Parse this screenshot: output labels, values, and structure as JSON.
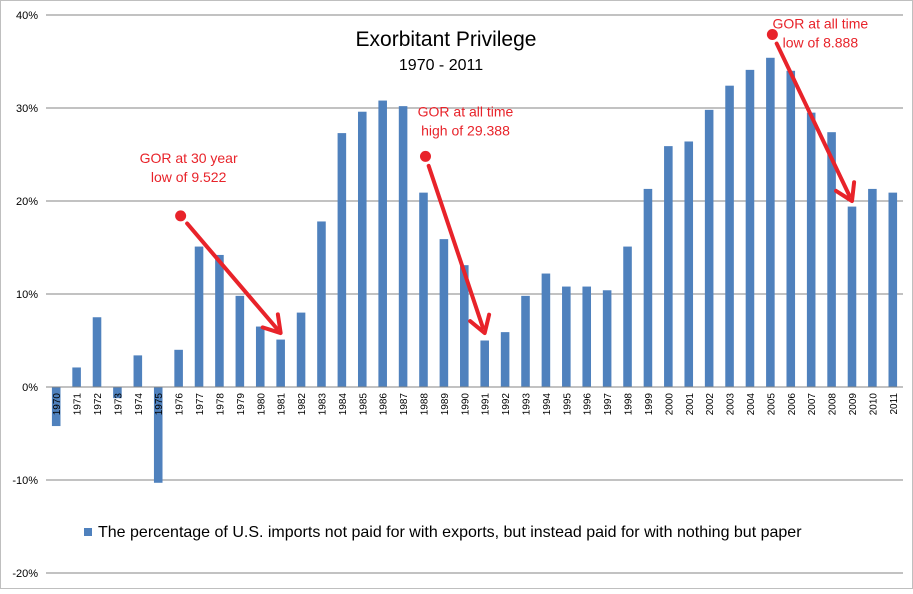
{
  "chart_data": {
    "type": "bar",
    "title": "Exorbitant Privilege",
    "subtitle": "1970 - 2011",
    "xlabel": "",
    "ylabel": "",
    "ylim": [
      -20,
      40
    ],
    "yticks": [
      -20,
      -10,
      0,
      10,
      20,
      30,
      40
    ],
    "ytick_labels": [
      "-20%",
      "-10%",
      "0%",
      "10%",
      "20%",
      "30%",
      "40%"
    ],
    "grid": true,
    "legend_position": "bottom",
    "bar_color": "#4f81bd",
    "categories": [
      "1970",
      "1971",
      "1972",
      "1973",
      "1974",
      "1975",
      "1976",
      "1977",
      "1978",
      "1979",
      "1980",
      "1981",
      "1982",
      "1983",
      "1984",
      "1985",
      "1986",
      "1987",
      "1988",
      "1989",
      "1990",
      "1991",
      "1992",
      "1993",
      "1994",
      "1995",
      "1996",
      "1997",
      "1998",
      "1999",
      "2000",
      "2001",
      "2002",
      "2003",
      "2004",
      "2005",
      "2006",
      "2007",
      "2008",
      "2009",
      "2010",
      "2011"
    ],
    "series": [
      {
        "name": "The percentage of U.S. imports not paid for with exports, but instead paid for with nothing but paper",
        "values": [
          -4.2,
          2.1,
          7.5,
          -1.2,
          3.4,
          -10.3,
          4.0,
          15.1,
          14.2,
          9.8,
          6.5,
          5.1,
          8.0,
          17.8,
          27.3,
          29.6,
          30.8,
          30.2,
          20.9,
          15.9,
          13.1,
          5.0,
          5.9,
          9.8,
          12.2,
          10.8,
          10.8,
          10.4,
          15.1,
          21.3,
          25.9,
          26.4,
          29.8,
          32.4,
          34.1,
          35.4,
          34.0,
          29.5,
          27.4,
          19.4,
          21.3,
          20.9
        ]
      }
    ],
    "annotations": [
      {
        "line1": "GOR at 30 year",
        "line2": "low of 9.522",
        "marker_at": {
          "year": "1976",
          "value": 18.4
        },
        "arrow_to": {
          "year": "1981",
          "value": 5.8
        }
      },
      {
        "line1": "GOR at all time",
        "line2": "high of 29.388",
        "marker_at": {
          "year": "1988",
          "value": 24.8
        },
        "arrow_to": {
          "year": "1991",
          "value": 5.8
        }
      },
      {
        "line1": "GOR at all time",
        "line2": "low of 8.888",
        "marker_at": {
          "year": "2005",
          "value": 37.9
        },
        "arrow_to": {
          "year": "2009",
          "value": 20.0
        }
      }
    ],
    "annotation_color": "#e8232a"
  }
}
